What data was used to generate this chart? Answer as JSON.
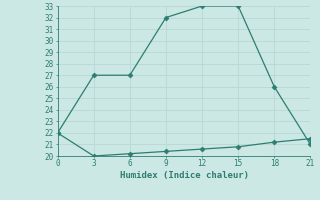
{
  "xlabel": "Humidex (Indice chaleur)",
  "ylabel": "",
  "line1_x": [
    0,
    3,
    6,
    9,
    12,
    15,
    18,
    21
  ],
  "line1_y": [
    22,
    27,
    27,
    32,
    33,
    33,
    26,
    21
  ],
  "line2_x": [
    0,
    3,
    6,
    9,
    12,
    15,
    18,
    21
  ],
  "line2_y": [
    22,
    20,
    20.2,
    20.4,
    20.6,
    20.8,
    21.2,
    21.5
  ],
  "line_color": "#2e7d72",
  "bg_color": "#cce8e4",
  "grid_color": "#b8d8d4",
  "xlim": [
    0,
    21
  ],
  "ylim": [
    20,
    33
  ],
  "xticks": [
    0,
    3,
    6,
    9,
    12,
    15,
    18,
    21
  ],
  "yticks": [
    20,
    21,
    22,
    23,
    24,
    25,
    26,
    27,
    28,
    29,
    30,
    31,
    32,
    33
  ],
  "marker": "D",
  "markersize": 2.5,
  "linewidth": 0.9,
  "tick_labelsize": 5.5,
  "xlabel_fontsize": 6.5
}
